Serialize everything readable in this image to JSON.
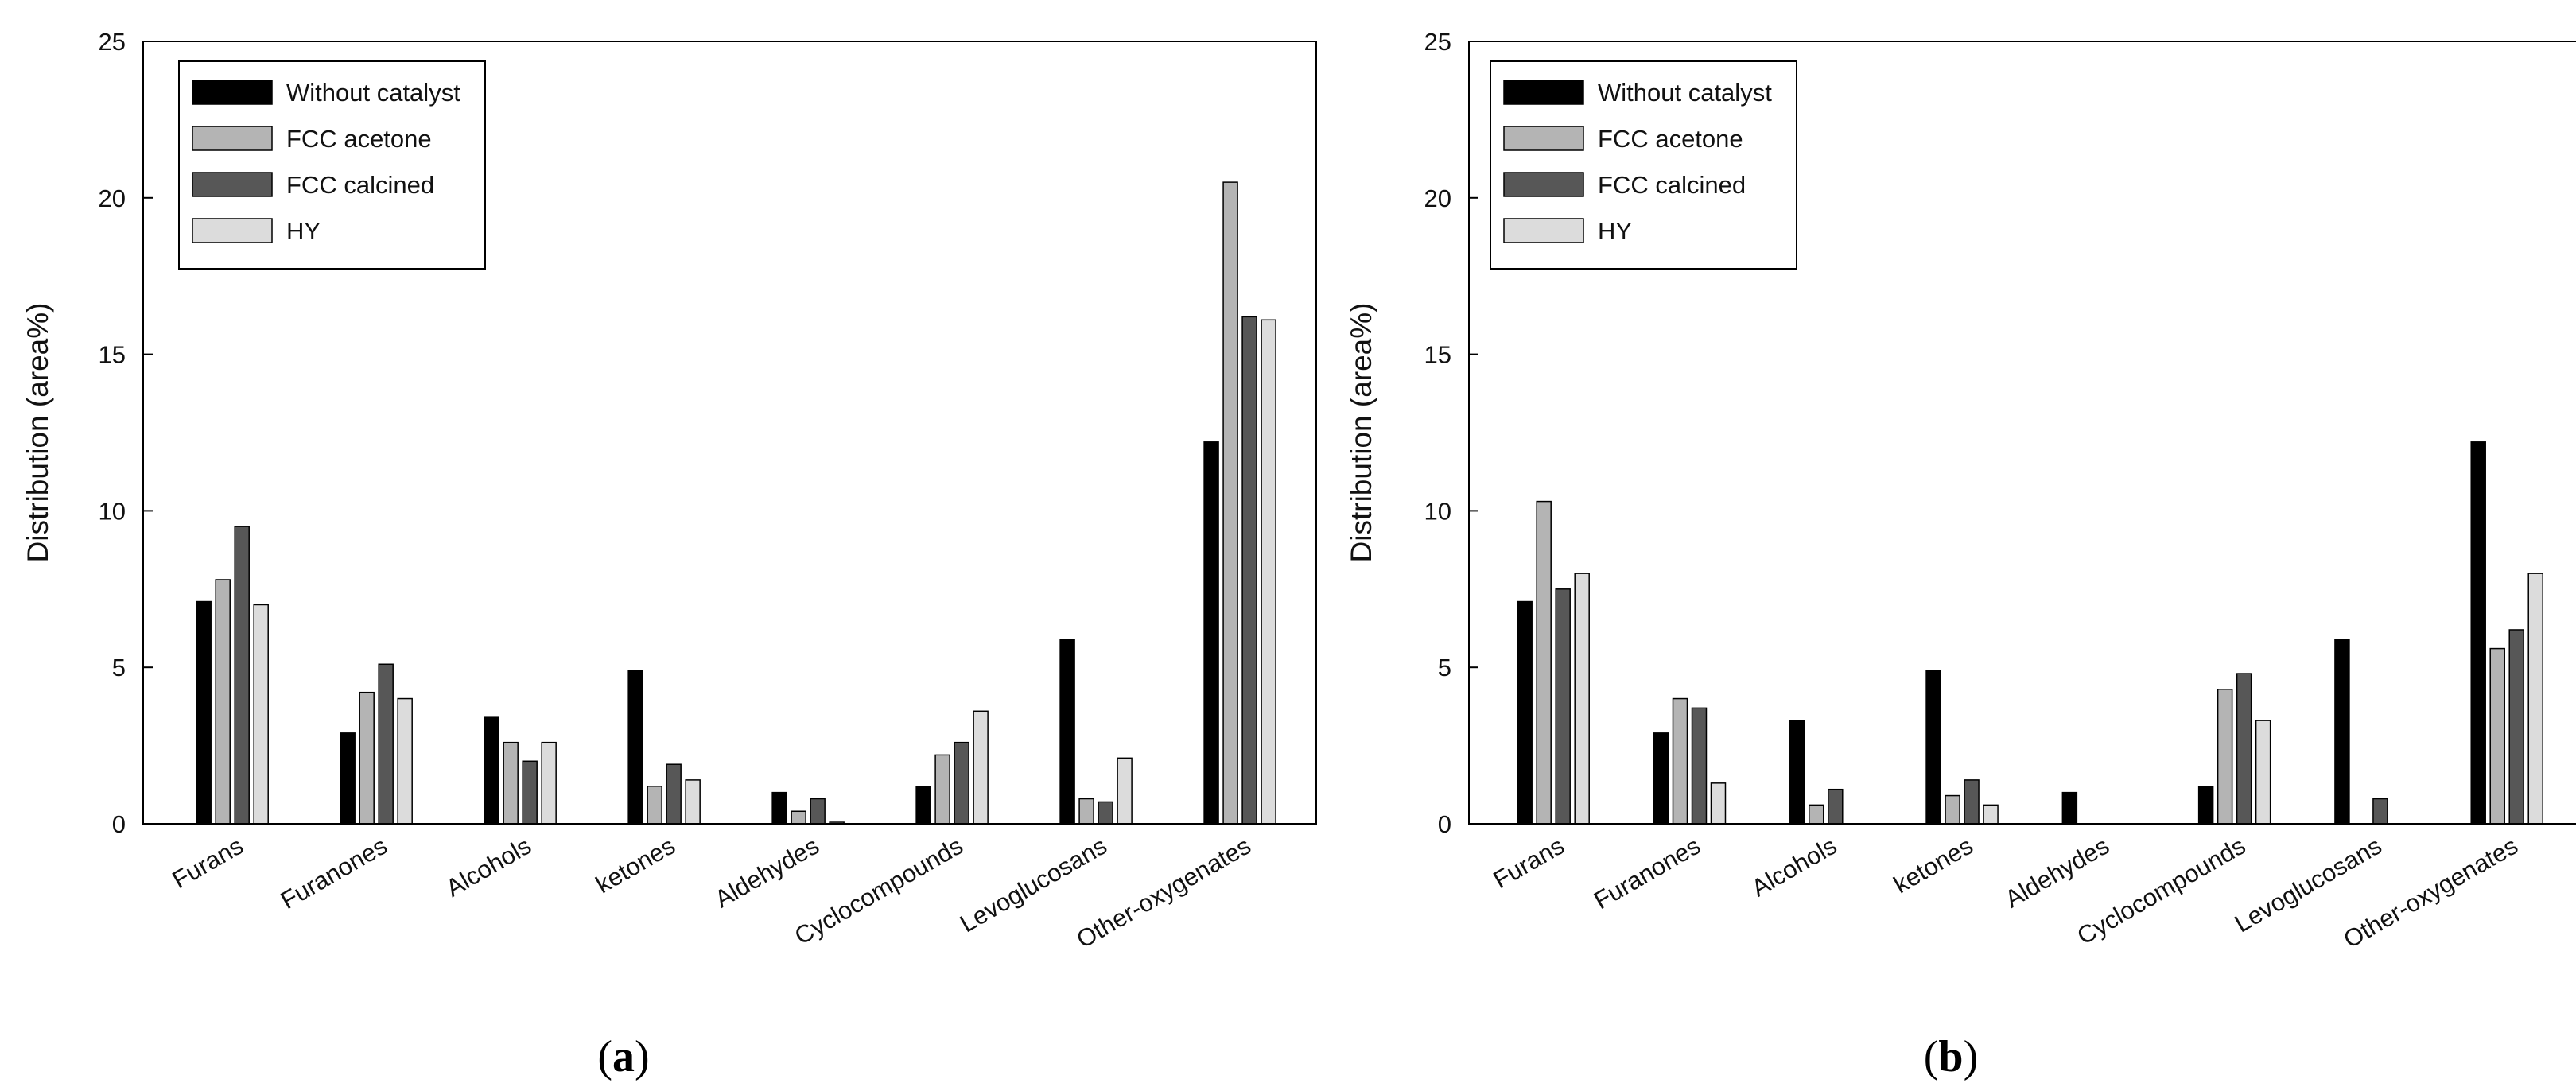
{
  "chart_data": [
    {
      "type": "bar",
      "panel_label": "a",
      "ylabel": "Distribution (area%)",
      "ylim": [
        0,
        25
      ],
      "yticks": [
        "0",
        "5",
        "10",
        "15",
        "20",
        "25"
      ],
      "categories": [
        "Furans",
        "Furanones",
        "Alcohols",
        "ketones",
        "Aldehydes",
        "Cyclocompounds",
        "Levoglucosans",
        "Other-oxygenates"
      ],
      "legend_position": "top-left",
      "series": [
        {
          "name": "Without catalyst",
          "color": "#000000",
          "values": [
            7.1,
            2.9,
            3.4,
            4.9,
            1.0,
            1.2,
            5.9,
            12.2
          ]
        },
        {
          "name": "FCC acetone",
          "color": "#b4b4b4",
          "values": [
            7.8,
            4.2,
            2.6,
            1.2,
            0.4,
            2.2,
            0.8,
            20.5
          ]
        },
        {
          "name": "FCC calcined",
          "color": "#575757",
          "values": [
            9.5,
            5.1,
            2.0,
            1.9,
            0.8,
            2.6,
            0.7,
            16.2
          ]
        },
        {
          "name": "HY",
          "color": "#dcdcdc",
          "values": [
            7.0,
            4.0,
            2.6,
            1.4,
            0.05,
            3.6,
            2.1,
            16.1
          ]
        }
      ]
    },
    {
      "type": "bar",
      "panel_label": "b",
      "ylabel": "Distribution (area%)",
      "ylim": [
        0,
        25
      ],
      "yticks": [
        "0",
        "5",
        "10",
        "15",
        "20",
        "25"
      ],
      "categories": [
        "Furans",
        "Furanones",
        "Alcohols",
        "ketones",
        "Aldehydes",
        "Cyclocompounds",
        "Levoglucosans",
        "Other-oxygenates"
      ],
      "legend_position": "top-left",
      "series": [
        {
          "name": "Without catalyst",
          "color": "#000000",
          "values": [
            7.1,
            2.9,
            3.3,
            4.9,
            1.0,
            1.2,
            5.9,
            12.2
          ]
        },
        {
          "name": "FCC acetone",
          "color": "#b4b4b4",
          "values": [
            10.3,
            4.0,
            0.6,
            0.9,
            0.0,
            4.3,
            0.0,
            5.6
          ]
        },
        {
          "name": "FCC calcined",
          "color": "#575757",
          "values": [
            7.5,
            3.7,
            1.1,
            1.4,
            0.0,
            4.8,
            0.8,
            6.2
          ]
        },
        {
          "name": "HY",
          "color": "#dcdcdc",
          "values": [
            8.0,
            1.3,
            0.0,
            0.6,
            0.0,
            3.3,
            0.0,
            8.0
          ]
        }
      ]
    }
  ]
}
